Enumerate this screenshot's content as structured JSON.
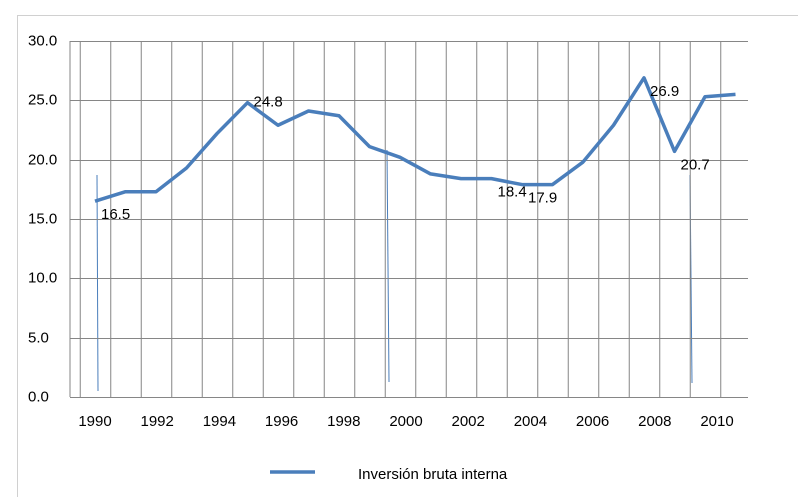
{
  "chart_data": {
    "type": "line",
    "categories": [
      "1990",
      null,
      "1992",
      null,
      "1994",
      null,
      "1996",
      null,
      "1998",
      null,
      "2000",
      null,
      "2002",
      null,
      "2004",
      null,
      "2006",
      null,
      "2008",
      null,
      "2010",
      null
    ],
    "series": [
      {
        "name": "Inversión bruta interna",
        "color": "#4a7ebb",
        "values": [
          16.5,
          17.3,
          17.3,
          19.3,
          22.2,
          24.8,
          22.9,
          24.1,
          23.7,
          21.1,
          20.2,
          18.8,
          18.4,
          18.4,
          17.9,
          17.9,
          19.8,
          22.9,
          26.9,
          20.7,
          25.3,
          25.5
        ],
        "value_labels": [
          "16.5",
          null,
          null,
          null,
          null,
          "24.8",
          null,
          null,
          null,
          null,
          null,
          null,
          null,
          "18.4",
          "17.9",
          null,
          null,
          null,
          "26.9",
          "20.7",
          null,
          null
        ]
      }
    ],
    "ylim": [
      0,
      30
    ],
    "yticks": [
      {
        "value": 0,
        "label": "0.0"
      },
      {
        "value": 5,
        "label": "5.0"
      },
      {
        "value": 10,
        "label": "10.0"
      },
      {
        "value": 15,
        "label": "15.0"
      },
      {
        "value": 20,
        "label": "20.0"
      },
      {
        "value": 25,
        "label": "25.0"
      },
      {
        "value": 30,
        "label": "30.0"
      }
    ],
    "grid": true,
    "legend": "bottom"
  }
}
